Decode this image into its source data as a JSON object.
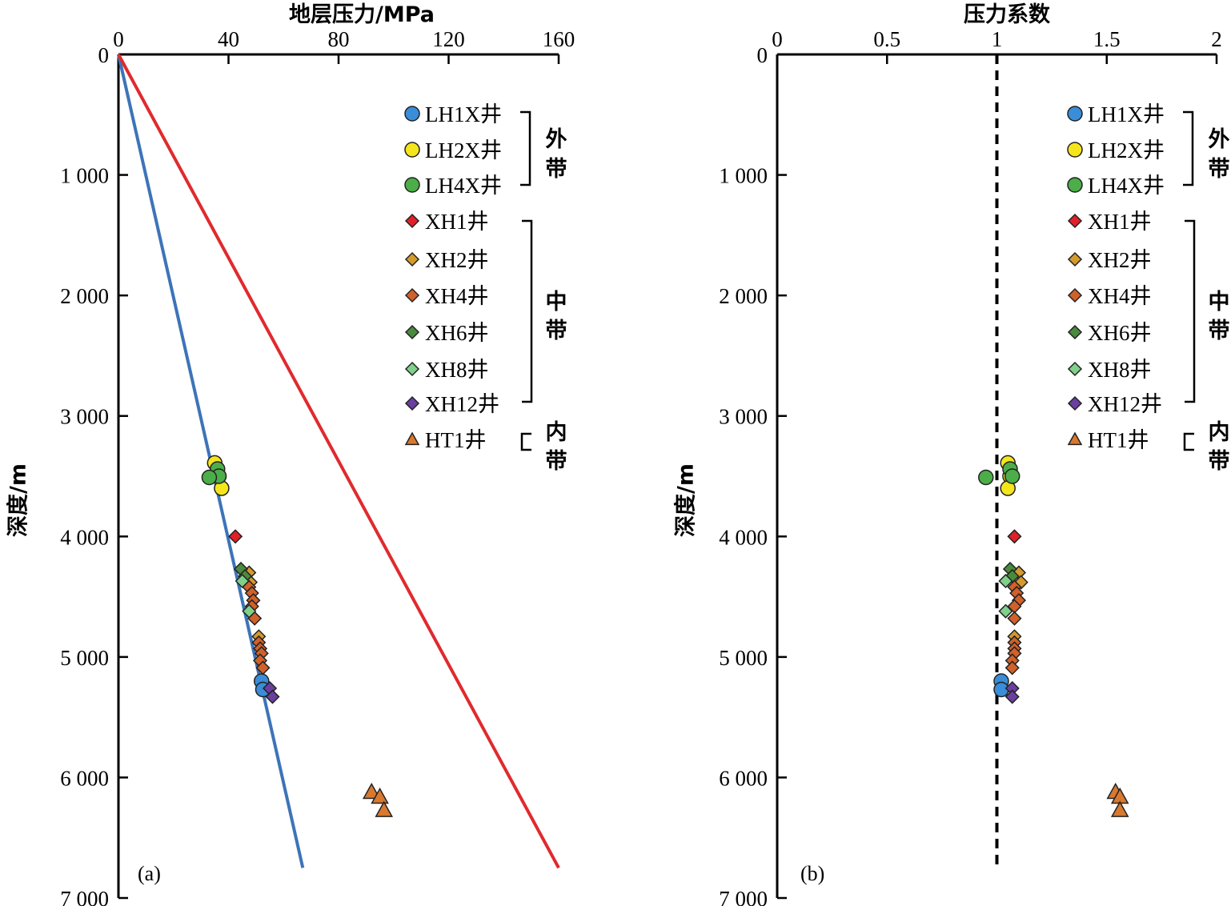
{
  "colors": {
    "LH1X": "#3a8dd8",
    "LH2X": "#f5e61c",
    "LH4X": "#4cae48",
    "XH1": "#e02129",
    "XH2": "#d49a2c",
    "XH4": "#d0612a",
    "XH6": "#4a8a3c",
    "XH8": "#7fd08a",
    "XH12": "#6a3fa0",
    "HT1": "#d8792f",
    "hydrostatic_line": "#3d74b8",
    "lithostatic_line": "#e02a2e"
  },
  "chart_data": [
    {
      "type": "scatter",
      "panel_label": "(a)",
      "title": "地层压力/MPa",
      "ylabel": "深度/m",
      "xlim": [
        0,
        160
      ],
      "ylim": [
        7000,
        0
      ],
      "x_ticks": [
        "0",
        "40",
        "80",
        "120",
        "160"
      ],
      "x_tick_values": [
        0,
        40,
        80,
        120,
        160
      ],
      "y_ticks": [
        "0",
        "1 000",
        "2 000",
        "3 000",
        "4 000",
        "5 000",
        "6 000",
        "7 000"
      ],
      "y_tick_values": [
        0,
        1000,
        2000,
        3000,
        4000,
        5000,
        6000,
        7000
      ],
      "lines": [
        {
          "key": "hydrostatic",
          "x": [
            0,
            67
          ],
          "y": [
            0,
            6750
          ]
        },
        {
          "key": "lithostatic",
          "x": [
            0,
            160
          ],
          "y": [
            0,
            6750
          ]
        }
      ],
      "series": [
        {
          "name": "LH1X井",
          "key": "LH1X",
          "marker": "circle",
          "x": [
            52.0,
            52.5
          ],
          "y": [
            5200,
            5270
          ]
        },
        {
          "name": "LH2X井",
          "key": "LH2X",
          "marker": "circle",
          "x": [
            35.0,
            36.5,
            37.5
          ],
          "y": [
            3390,
            3500,
            3600
          ]
        },
        {
          "name": "LH4X井",
          "key": "LH4X",
          "marker": "circle",
          "x": [
            36.0,
            36.5,
            33.0
          ],
          "y": [
            3440,
            3500,
            3510
          ]
        },
        {
          "name": "XH1井",
          "key": "XH1",
          "marker": "diamond",
          "x": [
            42.5
          ],
          "y": [
            4000
          ]
        },
        {
          "name": "XH2井",
          "key": "XH2",
          "marker": "diamond",
          "x": [
            47.5,
            48.0,
            51.0
          ],
          "y": [
            4300,
            4380,
            4830
          ]
        },
        {
          "name": "XH4井",
          "key": "XH4",
          "marker": "diamond",
          "x": [
            47.5,
            48.5,
            49.0,
            48.5,
            49.5,
            51.0,
            51.5,
            52.0,
            51.5,
            52.5
          ],
          "y": [
            4420,
            4470,
            4530,
            4580,
            4680,
            4880,
            4930,
            4970,
            5030,
            5090
          ]
        },
        {
          "name": "XH6井",
          "key": "XH6",
          "marker": "diamond",
          "x": [
            44.5,
            46.0
          ],
          "y": [
            4270,
            4330
          ]
        },
        {
          "name": "XH8井",
          "key": "XH8",
          "marker": "diamond",
          "x": [
            45.0,
            47.5
          ],
          "y": [
            4370,
            4620
          ]
        },
        {
          "name": "XH12井",
          "key": "XH12",
          "marker": "diamond",
          "x": [
            55.0,
            56.0
          ],
          "y": [
            5260,
            5330
          ]
        },
        {
          "name": "HT1井",
          "key": "HT1",
          "marker": "triangle",
          "x": [
            92.0,
            95.0,
            96.5
          ],
          "y": [
            6120,
            6160,
            6270
          ]
        }
      ]
    },
    {
      "type": "scatter",
      "panel_label": "(b)",
      "title": "压力系数",
      "ylabel": "深度/m",
      "xlim": [
        0,
        2
      ],
      "ylim": [
        7000,
        0
      ],
      "x_ticks": [
        "0",
        "0.5",
        "1",
        "1.5",
        "2"
      ],
      "x_tick_values": [
        0,
        0.5,
        1,
        1.5,
        2
      ],
      "y_ticks": [
        "0",
        "1 000",
        "2 000",
        "3 000",
        "4 000",
        "5 000",
        "6 000",
        "7 000"
      ],
      "y_tick_values": [
        0,
        1000,
        2000,
        3000,
        4000,
        5000,
        6000,
        7000
      ],
      "lines": [
        {
          "key": "reference",
          "x": [
            1,
            1
          ],
          "y": [
            0,
            6750
          ],
          "dashed": true
        }
      ],
      "series": [
        {
          "name": "LH1X井",
          "key": "LH1X",
          "marker": "circle",
          "x": [
            1.02,
            1.02
          ],
          "y": [
            5200,
            5270
          ]
        },
        {
          "name": "LH2X井",
          "key": "LH2X",
          "marker": "circle",
          "x": [
            1.05,
            1.06,
            1.05
          ],
          "y": [
            3390,
            3500,
            3600
          ]
        },
        {
          "name": "LH4X井",
          "key": "LH4X",
          "marker": "circle",
          "x": [
            1.06,
            1.07,
            0.95
          ],
          "y": [
            3440,
            3500,
            3510
          ]
        },
        {
          "name": "XH1井",
          "key": "XH1",
          "marker": "diamond",
          "x": [
            1.08
          ],
          "y": [
            4000
          ]
        },
        {
          "name": "XH2井",
          "key": "XH2",
          "marker": "diamond",
          "x": [
            1.1,
            1.11,
            1.08
          ],
          "y": [
            4300,
            4380,
            4830
          ]
        },
        {
          "name": "XH4井",
          "key": "XH4",
          "marker": "diamond",
          "x": [
            1.08,
            1.09,
            1.1,
            1.08,
            1.08,
            1.08,
            1.08,
            1.08,
            1.07,
            1.07
          ],
          "y": [
            4420,
            4470,
            4530,
            4580,
            4680,
            4880,
            4930,
            4970,
            5030,
            5090
          ]
        },
        {
          "name": "XH6井",
          "key": "XH6",
          "marker": "diamond",
          "x": [
            1.06,
            1.07
          ],
          "y": [
            4270,
            4330
          ]
        },
        {
          "name": "XH8井",
          "key": "XH8",
          "marker": "diamond",
          "x": [
            1.04,
            1.04
          ],
          "y": [
            4370,
            4620
          ]
        },
        {
          "name": "XH12井",
          "key": "XH12",
          "marker": "diamond",
          "x": [
            1.07,
            1.07
          ],
          "y": [
            5260,
            5330
          ]
        },
        {
          "name": "HT1井",
          "key": "HT1",
          "marker": "triangle",
          "x": [
            1.54,
            1.56,
            1.56
          ],
          "y": [
            6120,
            6160,
            6270
          ]
        }
      ]
    }
  ],
  "legend": {
    "items": [
      {
        "label": "LH1X井",
        "key": "LH1X",
        "marker": "circle"
      },
      {
        "label": "LH2X井",
        "key": "LH2X",
        "marker": "circle"
      },
      {
        "label": "LH4X井",
        "key": "LH4X",
        "marker": "circle"
      },
      {
        "label": "XH1井",
        "key": "XH1",
        "marker": "diamond"
      },
      {
        "label": "XH2井",
        "key": "XH2",
        "marker": "diamond"
      },
      {
        "label": "XH4井",
        "key": "XH4",
        "marker": "diamond"
      },
      {
        "label": "XH6井",
        "key": "XH6",
        "marker": "diamond"
      },
      {
        "label": "XH8井",
        "key": "XH8",
        "marker": "diamond"
      },
      {
        "label": "XH12井",
        "key": "XH12",
        "marker": "diamond"
      },
      {
        "label": "HT1井",
        "key": "HT1",
        "marker": "triangle"
      }
    ],
    "zones": {
      "outer": [
        "外",
        "带"
      ],
      "middle": [
        "中",
        "带"
      ],
      "inner": [
        "内",
        "带"
      ]
    }
  }
}
